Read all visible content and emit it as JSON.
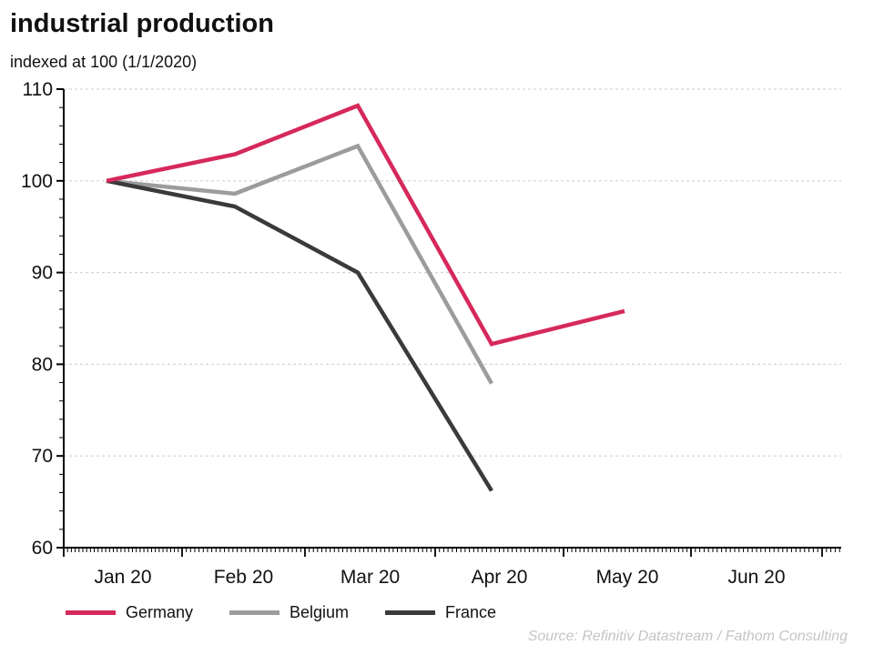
{
  "header": {
    "title": "industrial production",
    "subtitle": "indexed at 100 (1/1/2020)"
  },
  "source": "Source: Refinitiv Datastream / Fathom Consulting",
  "colors": {
    "germany": "#d6295b",
    "belgium": "#9c9c9c",
    "france": "#3a3a3a",
    "grid": "#d4d4d4",
    "axis": "#000000",
    "tick_label": "#111111",
    "source_text": "#c5c5c5"
  },
  "chart_data": {
    "type": "line",
    "title": "industrial production",
    "subtitle": "indexed at 100 (1/1/2020)",
    "categories": [
      "Jan 20",
      "Feb 20",
      "Mar 20",
      "Apr 20",
      "May 20"
    ],
    "series": [
      {
        "name": "Germany",
        "color": "#d6295b",
        "values": [
          100,
          102.9,
          108.2,
          82.2,
          85.8
        ]
      },
      {
        "name": "Belgium",
        "color": "#9c9c9c",
        "values": [
          100,
          98.6,
          103.8,
          77.9,
          null
        ]
      },
      {
        "name": "France",
        "color": "#3a3a3a",
        "values": [
          100,
          97.2,
          90,
          66.2,
          null
        ]
      }
    ],
    "x_axis": {
      "tick_labels": [
        "Jan 20",
        "Feb 20",
        "Mar 20",
        "Apr 20",
        "May 20",
        "Jun 20"
      ],
      "days_per_month": [
        31,
        29,
        31,
        30,
        31,
        30
      ]
    },
    "y_axis": {
      "tick_labels": [
        "110",
        "100",
        "90",
        "80",
        "70",
        "60"
      ],
      "min": 60,
      "max": 110,
      "major_step": 10,
      "minor_step": 2
    },
    "ylim": [
      60,
      110
    ],
    "grid": {
      "horizontal": true,
      "style": "dashed"
    },
    "legend": {
      "position": "bottom-left",
      "entries": [
        "Germany",
        "Belgium",
        "France"
      ]
    }
  }
}
